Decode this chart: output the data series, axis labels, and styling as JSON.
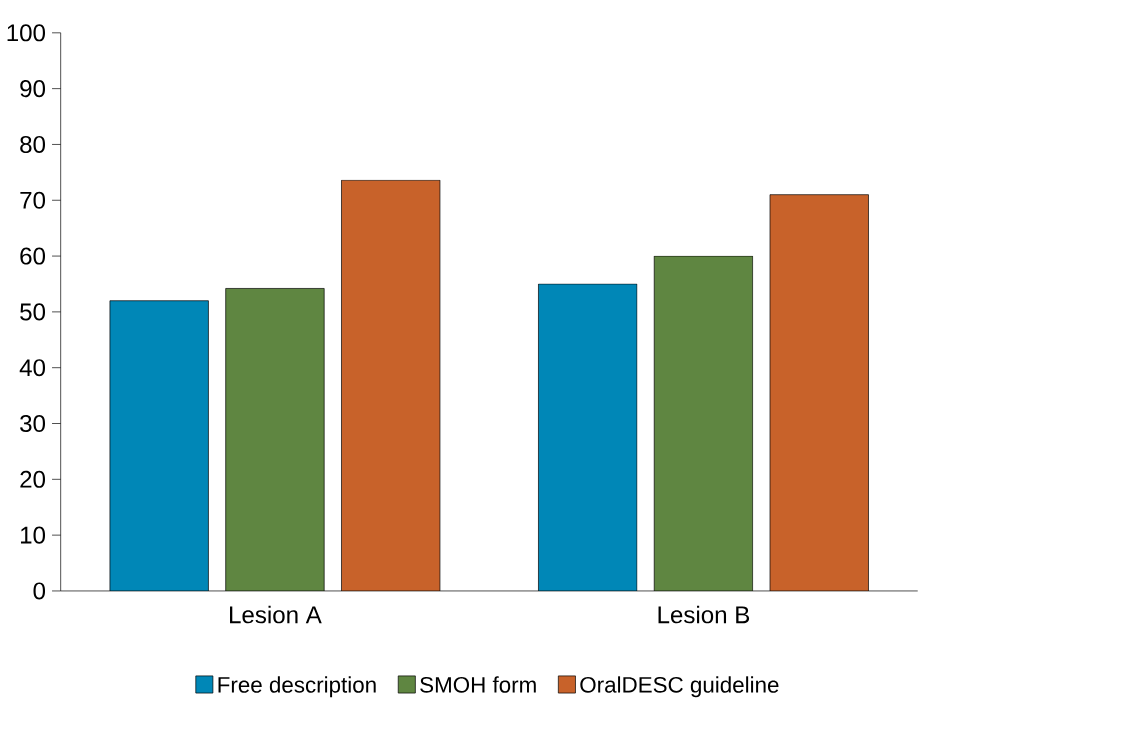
{
  "chart_data": {
    "type": "bar",
    "categories": [
      "Lesion A",
      "Lesion B"
    ],
    "series": [
      {
        "name": "Free description",
        "color": "#0087b7",
        "values": [
          52,
          55
        ]
      },
      {
        "name": "SMOH form",
        "color": "#5f8641",
        "values": [
          54.2,
          60
        ]
      },
      {
        "name": "OralDESC guideline",
        "color": "#c8622a",
        "values": [
          73.6,
          71
        ]
      }
    ],
    "ylim": [
      0,
      100
    ],
    "yticks": [
      0,
      10,
      20,
      30,
      40,
      50,
      60,
      70,
      80,
      90,
      100
    ],
    "legend": "bottom"
  }
}
